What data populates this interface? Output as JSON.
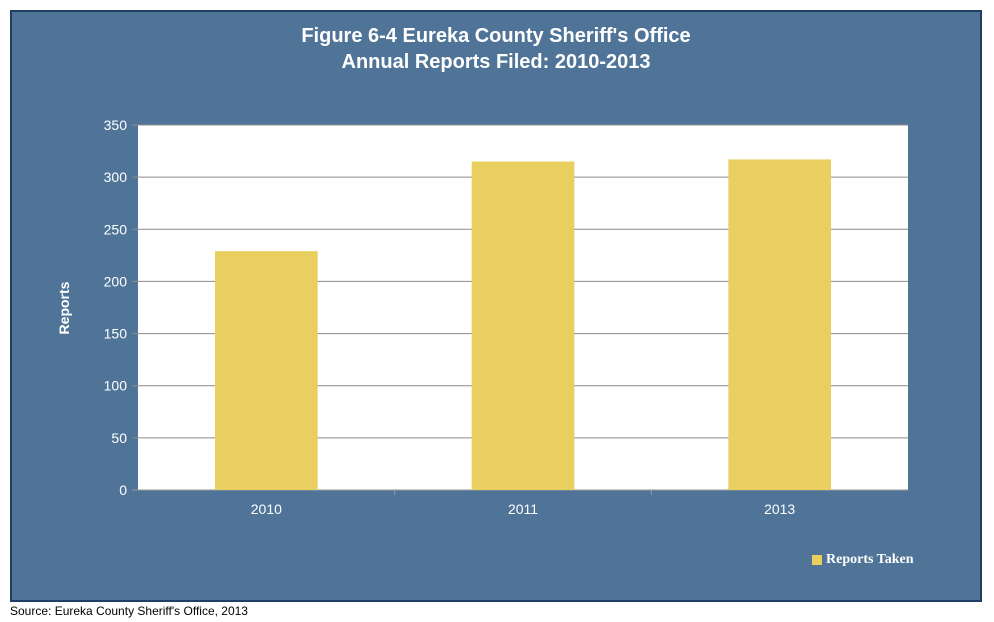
{
  "chart_data": {
    "type": "bar",
    "title": "Figure 6-4 Eureka County Sheriff's Office",
    "subtitle": "Annual Reports Filed: 2010-2013",
    "categories": [
      "2010",
      "2011",
      "2013"
    ],
    "series": [
      {
        "name": "Reports Taken",
        "values": [
          229,
          315,
          317
        ]
      }
    ],
    "xlabel": "",
    "ylabel": "Reports",
    "ylim": [
      0,
      350
    ],
    "yticks": [
      0,
      50,
      100,
      150,
      200,
      250,
      300,
      350
    ],
    "grid": true,
    "legend": "bottom-right",
    "colors": {
      "bar": "#e8cf5f",
      "panel": "#4f7498",
      "plot_bg": "#ffffff",
      "grid": "#8c8c8c"
    }
  },
  "footer": {
    "source": "Source: Eureka County Sheriff's Office, 2013"
  }
}
